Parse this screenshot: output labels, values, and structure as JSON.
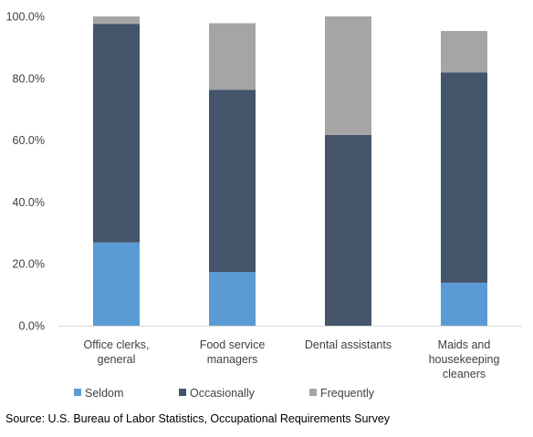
{
  "chart_data": {
    "type": "bar",
    "stacked": true,
    "categories": [
      [
        "Office clerks,",
        "general"
      ],
      [
        "Food service",
        "managers"
      ],
      [
        "Dental assistants"
      ],
      [
        "Maids and",
        "housekeeping",
        "cleaners"
      ]
    ],
    "series": [
      {
        "name": "Seldom",
        "color": "#5b9bd5",
        "values": [
          26.9,
          17.4,
          0.0,
          13.9
        ]
      },
      {
        "name": "Occasionally",
        "color": "#44546a",
        "values": [
          70.7,
          58.9,
          61.7,
          68.0
        ]
      },
      {
        "name": "Frequently",
        "color": "#a5a5a5",
        "values": [
          2.4,
          21.5,
          38.3,
          13.4
        ]
      }
    ],
    "ylim": [
      0,
      100
    ],
    "yticks": [
      "0.0%",
      "20.0%",
      "40.0%",
      "60.0%",
      "80.0%",
      "100.0%"
    ],
    "ytick_values": [
      0,
      20,
      40,
      60,
      80,
      100
    ],
    "grid": false,
    "legend_position": "bottom"
  },
  "source_text": "Source: U.S. Bureau of Labor Statistics, Occupational Requirements Survey"
}
